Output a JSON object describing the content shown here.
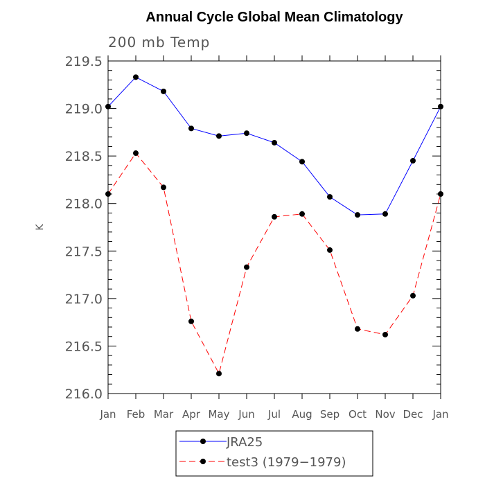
{
  "chart_data": {
    "type": "line",
    "title": "Annual Cycle Global Mean Climatology",
    "subtitle": "200 mb Temp",
    "xlabel": "",
    "ylabel": "K",
    "categories": [
      "Jan",
      "Feb",
      "Mar",
      "Apr",
      "May",
      "Jun",
      "Jul",
      "Aug",
      "Sep",
      "Oct",
      "Nov",
      "Dec",
      "Jan"
    ],
    "ylim": [
      216.0,
      219.5
    ],
    "yticks": [
      216.0,
      216.5,
      217.0,
      217.5,
      218.0,
      218.5,
      219.0,
      219.5
    ],
    "ytick_labels": [
      "216.0",
      "216.5",
      "217.0",
      "217.5",
      "218.0",
      "218.5",
      "219.0",
      "219.5"
    ],
    "grid": false,
    "legend_position": "bottom-center",
    "series": [
      {
        "name": "JRA25",
        "color": "#0000ff",
        "line_style": "solid",
        "marker": "filled-circle",
        "values": [
          219.02,
          219.33,
          219.18,
          218.79,
          218.71,
          218.74,
          218.64,
          218.44,
          218.07,
          217.88,
          217.89,
          218.45,
          219.02
        ]
      },
      {
        "name": "test3 (1979−1979)",
        "color": "#ff0000",
        "line_style": "dashed",
        "marker": "filled-circle",
        "values": [
          218.1,
          218.53,
          218.17,
          216.76,
          216.21,
          217.33,
          217.86,
          217.89,
          217.51,
          216.68,
          216.62,
          217.03,
          218.1
        ]
      }
    ]
  }
}
